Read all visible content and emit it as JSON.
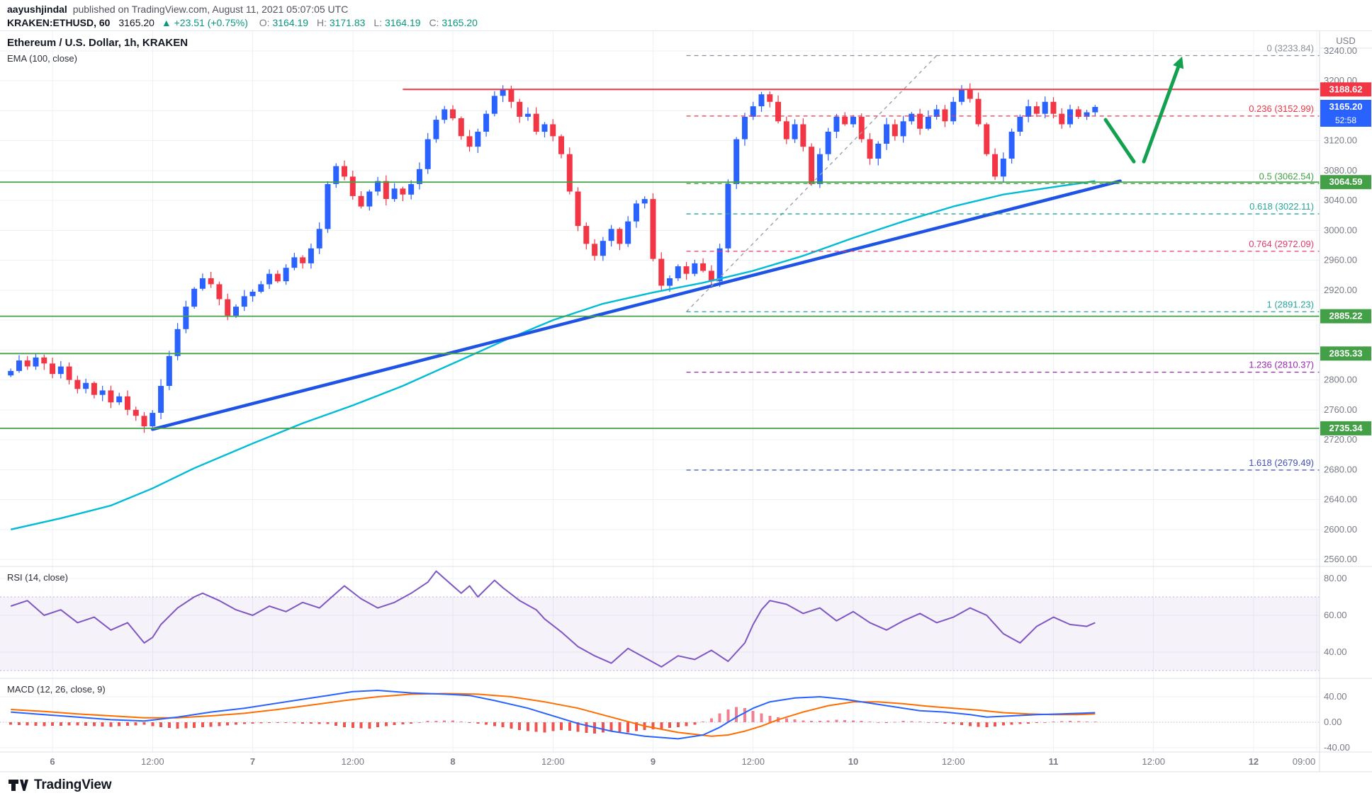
{
  "header": {
    "author": "aayushjindal",
    "published": "published on TradingView.com, August 11, 2021 05:07:05 UTC",
    "symbol": "KRAKEN:ETHUSD, 60",
    "price": "3165.20",
    "change": "▲ +23.51 (+0.75%)",
    "o_label": "O:",
    "o": "3164.19",
    "h_label": "H:",
    "h": "3171.83",
    "l_label": "L:",
    "l": "3164.19",
    "c_label": "C:",
    "c": "3165.20"
  },
  "legends": {
    "main": "Ethereum / U.S. Dollar, 1h, KRAKEN",
    "ema": "EMA (100, close)",
    "rsi": "RSI (14, close)",
    "macd": "MACD (12, 26, close, 9)"
  },
  "axis": {
    "currency": "USD",
    "price_ticks": [
      3240,
      3200,
      3160,
      3120,
      3080,
      3040,
      3000,
      2960,
      2920,
      2880,
      2840,
      2800,
      2760,
      2720,
      2680,
      2640,
      2600,
      2560
    ],
    "rsi_ticks": [
      80,
      60,
      40
    ],
    "macd_ticks": [
      40,
      0,
      -40
    ]
  },
  "price_badges": [
    {
      "value": "3188.62",
      "price": 3188.62,
      "bg": "#f23645"
    },
    {
      "value": "3165.20",
      "price": 3165.2,
      "bg": "#2962ff",
      "countdown": "52:58"
    },
    {
      "value": "3064.59",
      "price": 3064.59,
      "bg": "#43a047"
    },
    {
      "value": "2885.22",
      "price": 2885.22,
      "bg": "#43a047"
    },
    {
      "value": "2835.33",
      "price": 2835.33,
      "bg": "#43a047"
    },
    {
      "value": "2735.34",
      "price": 2735.34,
      "bg": "#43a047"
    }
  ],
  "colors": {
    "up": "#2962ff",
    "down": "#f23645",
    "ema": "#00bcd4",
    "trendline": "#1e53e5",
    "support": "#43a047",
    "resistance": "#f23645",
    "rsi": "#7e57c2",
    "macd": "#2962ff",
    "signal": "#ff6d00",
    "hist_pos": "#f17f91",
    "hist_neg": "#ef5350",
    "arrow": "#13a14f",
    "axis_text": "#787b86",
    "grid": "#eef0f4"
  },
  "footer": {
    "brand": "TradingView"
  },
  "chart_data": {
    "type": "candlestick",
    "title": "Ethereum / U.S. Dollar, 1h, KRAKEN",
    "interval": "1h",
    "price_range": [
      2560,
      3240
    ],
    "open_first": 2806,
    "closes": [
      2812,
      2826,
      2818,
      2830,
      2822,
      2808,
      2818,
      2800,
      2788,
      2796,
      2780,
      2786,
      2770,
      2778,
      2760,
      2752,
      2738,
      2756,
      2792,
      2832,
      2868,
      2898,
      2922,
      2936,
      2928,
      2908,
      2886,
      2898,
      2912,
      2918,
      2928,
      2942,
      2932,
      2950,
      2964,
      2956,
      2976,
      3002,
      3062,
      3086,
      3072,
      3046,
      3032,
      3052,
      3066,
      3042,
      3056,
      3048,
      3062,
      3082,
      3122,
      3148,
      3162,
      3150,
      3126,
      3112,
      3132,
      3156,
      3180,
      3188,
      3172,
      3152,
      3156,
      3132,
      3142,
      3126,
      3102,
      3052,
      3006,
      2982,
      2966,
      2986,
      3002,
      2982,
      3012,
      3036,
      3042,
      2962,
      2926,
      2936,
      2952,
      2942,
      2956,
      2946,
      2932,
      2976,
      3062,
      3122,
      3152,
      3166,
      3182,
      3172,
      3146,
      3122,
      3142,
      3112,
      3062,
      3102,
      3132,
      3152,
      3142,
      3152,
      3122,
      3096,
      3116,
      3142,
      3126,
      3146,
      3156,
      3136,
      3152,
      3162,
      3146,
      3172,
      3188,
      3176,
      3142,
      3102,
      3072,
      3096,
      3132,
      3152,
      3166,
      3156,
      3172,
      3156,
      3142,
      3162,
      3152,
      3158,
      3165.2
    ],
    "time_axis": [
      {
        "label": "6",
        "i": 5
      },
      {
        "label": "12:00",
        "i": 17
      },
      {
        "label": "7",
        "i": 29
      },
      {
        "label": "12:00",
        "i": 41
      },
      {
        "label": "8",
        "i": 53
      },
      {
        "label": "12:00",
        "i": 65
      },
      {
        "label": "9",
        "i": 77
      },
      {
        "label": "12:00",
        "i": 89
      },
      {
        "label": "10",
        "i": 101
      },
      {
        "label": "12:00",
        "i": 113
      },
      {
        "label": "11",
        "i": 125
      },
      {
        "label": "12:00",
        "i": 137
      },
      {
        "label": "12",
        "i": 149
      },
      {
        "label": "09:00",
        "i": 158
      }
    ],
    "ema100": [
      [
        0,
        2600
      ],
      [
        6,
        2615
      ],
      [
        12,
        2632
      ],
      [
        17,
        2655
      ],
      [
        22,
        2682
      ],
      [
        29,
        2715
      ],
      [
        35,
        2742
      ],
      [
        41,
        2766
      ],
      [
        47,
        2792
      ],
      [
        53,
        2822
      ],
      [
        59,
        2852
      ],
      [
        65,
        2880
      ],
      [
        71,
        2902
      ],
      [
        77,
        2917
      ],
      [
        83,
        2930
      ],
      [
        89,
        2946
      ],
      [
        95,
        2966
      ],
      [
        101,
        2990
      ],
      [
        107,
        3012
      ],
      [
        113,
        3032
      ],
      [
        119,
        3048
      ],
      [
        125,
        3058
      ],
      [
        130,
        3066
      ]
    ],
    "trendline": {
      "from": [
        17,
        2734
      ],
      "to": [
        133,
        3066
      ]
    },
    "fib_baseline": {
      "from": [
        81,
        2891.23
      ],
      "to": [
        111,
        3233.84
      ]
    },
    "fib_start_i": 81,
    "fib_levels": [
      {
        "label": "0 (3233.84)",
        "price": 3233.84,
        "color": "#8c8f99"
      },
      {
        "label": "0.236 (3152.99)",
        "price": 3152.99,
        "color": "#f23645"
      },
      {
        "label": "0.5 (3062.54)",
        "price": 3062.54,
        "color": "#43a047"
      },
      {
        "label": "0.618 (3022.11)",
        "price": 3022.11,
        "color": "#26a69a"
      },
      {
        "label": "0.764 (2972.09)",
        "price": 2972.09,
        "color": "#e8386d"
      },
      {
        "label": "1 (2891.23)",
        "price": 2891.23,
        "color": "#26a69a"
      },
      {
        "label": "1.236 (2810.37)",
        "price": 2810.37,
        "color": "#9c27b0"
      },
      {
        "label": "1.618 (2679.49)",
        "price": 2679.49,
        "color": "#3f51b5"
      }
    ],
    "support_lines": [
      {
        "price": 3064.59
      },
      {
        "price": 2885.22
      },
      {
        "price": 2835.33
      },
      {
        "price": 2735.34
      }
    ],
    "resistance_line": {
      "price": 3188.62,
      "from_i": 47
    },
    "rsi": {
      "band": [
        30,
        70
      ],
      "points": [
        [
          0,
          65
        ],
        [
          2,
          68
        ],
        [
          4,
          60
        ],
        [
          6,
          63
        ],
        [
          8,
          56
        ],
        [
          10,
          59
        ],
        [
          12,
          52
        ],
        [
          14,
          56
        ],
        [
          16,
          45
        ],
        [
          17,
          48
        ],
        [
          18,
          55
        ],
        [
          20,
          64
        ],
        [
          22,
          70
        ],
        [
          23,
          72
        ],
        [
          25,
          68
        ],
        [
          27,
          63
        ],
        [
          29,
          60
        ],
        [
          31,
          65
        ],
        [
          33,
          62
        ],
        [
          35,
          67
        ],
        [
          37,
          64
        ],
        [
          39,
          72
        ],
        [
          40,
          76
        ],
        [
          42,
          69
        ],
        [
          44,
          64
        ],
        [
          46,
          67
        ],
        [
          48,
          72
        ],
        [
          50,
          78
        ],
        [
          51,
          84
        ],
        [
          52,
          80
        ],
        [
          54,
          72
        ],
        [
          55,
          76
        ],
        [
          56,
          70
        ],
        [
          58,
          79
        ],
        [
          59,
          75
        ],
        [
          61,
          68
        ],
        [
          63,
          63
        ],
        [
          64,
          58
        ],
        [
          66,
          51
        ],
        [
          68,
          43
        ],
        [
          70,
          38
        ],
        [
          72,
          34
        ],
        [
          74,
          42
        ],
        [
          76,
          37
        ],
        [
          78,
          32
        ],
        [
          80,
          38
        ],
        [
          82,
          36
        ],
        [
          84,
          41
        ],
        [
          86,
          35
        ],
        [
          88,
          45
        ],
        [
          89,
          55
        ],
        [
          90,
          63
        ],
        [
          91,
          68
        ],
        [
          93,
          66
        ],
        [
          95,
          61
        ],
        [
          97,
          64
        ],
        [
          99,
          57
        ],
        [
          101,
          62
        ],
        [
          103,
          56
        ],
        [
          105,
          52
        ],
        [
          107,
          57
        ],
        [
          109,
          61
        ],
        [
          111,
          56
        ],
        [
          113,
          59
        ],
        [
          115,
          64
        ],
        [
          117,
          60
        ],
        [
          119,
          50
        ],
        [
          121,
          45
        ],
        [
          123,
          54
        ],
        [
          125,
          59
        ],
        [
          127,
          55
        ],
        [
          129,
          54
        ],
        [
          130,
          56
        ]
      ]
    },
    "macd": {
      "macd": [
        [
          0,
          16
        ],
        [
          4,
          12
        ],
        [
          8,
          8
        ],
        [
          12,
          4
        ],
        [
          16,
          2
        ],
        [
          20,
          8
        ],
        [
          24,
          16
        ],
        [
          28,
          22
        ],
        [
          30,
          26
        ],
        [
          34,
          34
        ],
        [
          38,
          42
        ],
        [
          41,
          48
        ],
        [
          44,
          50
        ],
        [
          48,
          46
        ],
        [
          52,
          44
        ],
        [
          55,
          42
        ],
        [
          58,
          34
        ],
        [
          62,
          22
        ],
        [
          66,
          6
        ],
        [
          68,
          -2
        ],
        [
          72,
          -14
        ],
        [
          76,
          -22
        ],
        [
          80,
          -26
        ],
        [
          83,
          -20
        ],
        [
          85,
          -8
        ],
        [
          87,
          8
        ],
        [
          89,
          22
        ],
        [
          91,
          32
        ],
        [
          94,
          38
        ],
        [
          97,
          40
        ],
        [
          100,
          36
        ],
        [
          103,
          30
        ],
        [
          106,
          24
        ],
        [
          109,
          18
        ],
        [
          112,
          16
        ],
        [
          115,
          12
        ],
        [
          117,
          8
        ],
        [
          120,
          10
        ],
        [
          123,
          12
        ],
        [
          126,
          13
        ],
        [
          130,
          15
        ]
      ],
      "signal": [
        [
          0,
          20
        ],
        [
          4,
          17
        ],
        [
          8,
          13
        ],
        [
          12,
          10
        ],
        [
          16,
          7
        ],
        [
          20,
          7
        ],
        [
          24,
          10
        ],
        [
          28,
          14
        ],
        [
          32,
          20
        ],
        [
          36,
          27
        ],
        [
          40,
          34
        ],
        [
          44,
          40
        ],
        [
          48,
          44
        ],
        [
          52,
          45
        ],
        [
          56,
          44
        ],
        [
          60,
          40
        ],
        [
          64,
          32
        ],
        [
          68,
          22
        ],
        [
          72,
          8
        ],
        [
          76,
          -6
        ],
        [
          80,
          -16
        ],
        [
          84,
          -22
        ],
        [
          86,
          -20
        ],
        [
          88,
          -14
        ],
        [
          90,
          -6
        ],
        [
          92,
          4
        ],
        [
          95,
          16
        ],
        [
          98,
          26
        ],
        [
          101,
          32
        ],
        [
          104,
          32
        ],
        [
          107,
          29
        ],
        [
          110,
          25
        ],
        [
          113,
          22
        ],
        [
          116,
          19
        ],
        [
          119,
          15
        ],
        [
          122,
          13
        ],
        [
          125,
          12
        ],
        [
          128,
          12
        ],
        [
          130,
          13
        ]
      ],
      "hist": [
        [
          0,
          -4
        ],
        [
          4,
          -6
        ],
        [
          8,
          -5
        ],
        [
          12,
          -7
        ],
        [
          16,
          -4
        ],
        [
          18,
          -8
        ],
        [
          20,
          -10
        ],
        [
          23,
          -8
        ],
        [
          26,
          -5
        ],
        [
          29,
          -2
        ],
        [
          32,
          -1
        ],
        [
          35,
          -2
        ],
        [
          38,
          -3
        ],
        [
          40,
          -8
        ],
        [
          43,
          -10
        ],
        [
          45,
          -6
        ],
        [
          48,
          -2
        ],
        [
          50,
          2
        ],
        [
          53,
          3
        ],
        [
          56,
          -2
        ],
        [
          58,
          -6
        ],
        [
          60,
          -10
        ],
        [
          62,
          -14
        ],
        [
          64,
          -16
        ],
        [
          66,
          -12
        ],
        [
          68,
          -15
        ],
        [
          70,
          -18
        ],
        [
          72,
          -14
        ],
        [
          74,
          -16
        ],
        [
          76,
          -12
        ],
        [
          78,
          -10
        ],
        [
          80,
          -8
        ],
        [
          82,
          -4
        ],
        [
          84,
          6
        ],
        [
          85,
          14
        ],
        [
          86,
          20
        ],
        [
          87,
          24
        ],
        [
          88,
          22
        ],
        [
          89,
          18
        ],
        [
          90,
          14
        ],
        [
          91,
          10
        ],
        [
          93,
          6
        ],
        [
          95,
          3
        ],
        [
          97,
          2
        ],
        [
          99,
          4
        ],
        [
          101,
          3
        ],
        [
          103,
          1
        ],
        [
          105,
          -1
        ],
        [
          107,
          2
        ],
        [
          109,
          1
        ],
        [
          111,
          -1
        ],
        [
          113,
          -3
        ],
        [
          115,
          -6
        ],
        [
          117,
          -8
        ],
        [
          119,
          -5
        ],
        [
          121,
          -3
        ],
        [
          123,
          -1
        ],
        [
          125,
          1
        ],
        [
          127,
          2
        ],
        [
          129,
          1
        ],
        [
          130,
          1
        ]
      ]
    },
    "arrow": {
      "segments": [
        [
          [
            1560,
            3148
          ],
          [
            1600,
            3092
          ]
        ],
        [
          [
            1614,
            3092
          ],
          [
            1664,
            3222
          ]
        ]
      ]
    }
  }
}
